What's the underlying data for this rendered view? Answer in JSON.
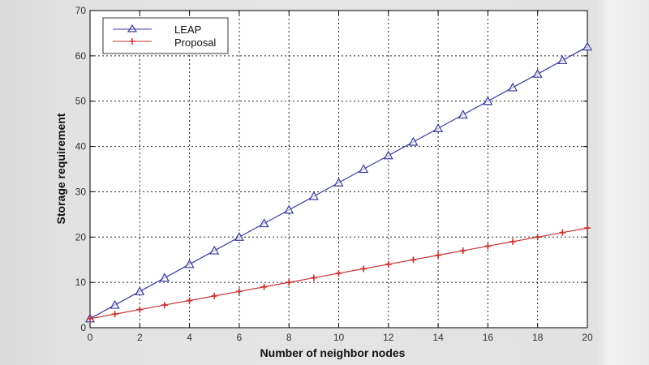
{
  "chart_data": {
    "type": "line",
    "title": "",
    "xlabel": "Number of neighbor nodes",
    "ylabel": "Storage requirement",
    "xlim": [
      0,
      20
    ],
    "ylim": [
      0,
      70
    ],
    "xticks": [
      0,
      2,
      4,
      6,
      8,
      10,
      12,
      14,
      16,
      18,
      20
    ],
    "yticks": [
      0,
      10,
      20,
      30,
      40,
      50,
      60,
      70
    ],
    "grid": true,
    "legend_position": "upper left",
    "x": [
      0,
      1,
      2,
      3,
      4,
      5,
      6,
      7,
      8,
      9,
      10,
      11,
      12,
      13,
      14,
      15,
      16,
      17,
      18,
      19,
      20
    ],
    "series": [
      {
        "name": "LEAP",
        "color": "#3a3aa0",
        "marker": "triangle",
        "values": [
          2,
          5,
          8,
          11,
          14,
          17,
          20,
          23,
          26,
          29,
          32,
          35,
          38,
          41,
          44,
          47,
          50,
          53,
          56,
          59,
          62
        ]
      },
      {
        "name": "Proposal",
        "color": "#cc3333",
        "marker": "plus",
        "values": [
          2,
          3,
          4,
          5,
          6,
          7,
          8,
          9,
          10,
          11,
          12,
          13,
          14,
          15,
          16,
          17,
          18,
          19,
          20,
          21,
          22
        ]
      }
    ]
  }
}
